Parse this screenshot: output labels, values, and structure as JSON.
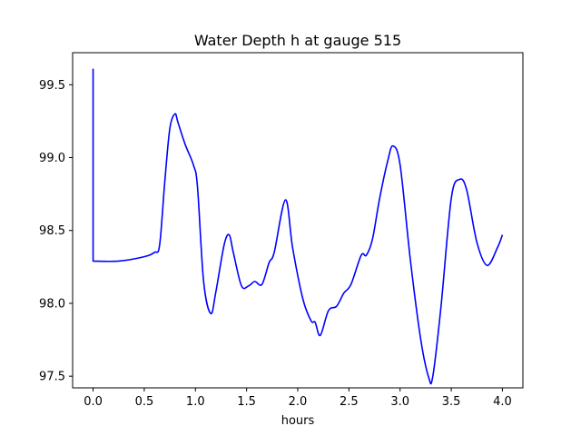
{
  "chart_data": {
    "type": "line",
    "title": "Water Depth h at gauge 515",
    "xlabel": "hours",
    "ylabel": "",
    "xlim": [
      -0.2,
      4.2
    ],
    "ylim": [
      97.42,
      99.72
    ],
    "xticks": [
      0.0,
      0.5,
      1.0,
      1.5,
      2.0,
      2.5,
      3.0,
      3.5,
      4.0
    ],
    "xtick_labels": [
      "0.0",
      "0.5",
      "1.0",
      "1.5",
      "2.0",
      "2.5",
      "3.0",
      "3.5",
      "4.0"
    ],
    "yticks": [
      97.5,
      98.0,
      98.5,
      99.0,
      99.5
    ],
    "ytick_labels": [
      "97.5",
      "98.0",
      "98.5",
      "99.0",
      "99.5"
    ],
    "grid": false,
    "series": [
      {
        "color": "#0000ff",
        "x": [
          0.0,
          0.0,
          0.25,
          0.5,
          0.6,
          0.65,
          0.7,
          0.75,
          0.8,
          0.83,
          0.9,
          0.98,
          1.02,
          1.08,
          1.15,
          1.2,
          1.28,
          1.33,
          1.37,
          1.45,
          1.52,
          1.58,
          1.65,
          1.72,
          1.77,
          1.88,
          1.95,
          2.05,
          2.13,
          2.17,
          2.22,
          2.3,
          2.38,
          2.45,
          2.52,
          2.62,
          2.67,
          2.73,
          2.8,
          2.88,
          2.93,
          3.0,
          3.1,
          3.2,
          3.28,
          3.32,
          3.4,
          3.5,
          3.58,
          3.65,
          3.75,
          3.85,
          3.95,
          4.0
        ],
        "y": [
          99.61,
          98.29,
          98.29,
          98.32,
          98.35,
          98.4,
          98.83,
          99.2,
          99.3,
          99.24,
          99.09,
          98.95,
          98.8,
          98.15,
          97.93,
          98.08,
          98.4,
          98.47,
          98.35,
          98.12,
          98.12,
          98.15,
          98.13,
          98.28,
          98.35,
          98.71,
          98.38,
          98.03,
          97.88,
          97.87,
          97.78,
          97.95,
          97.98,
          98.07,
          98.13,
          98.33,
          98.33,
          98.44,
          98.72,
          98.98,
          99.08,
          98.95,
          98.3,
          97.76,
          97.49,
          97.5,
          97.98,
          98.72,
          98.85,
          98.78,
          98.42,
          98.26,
          98.38,
          98.47
        ]
      }
    ]
  }
}
